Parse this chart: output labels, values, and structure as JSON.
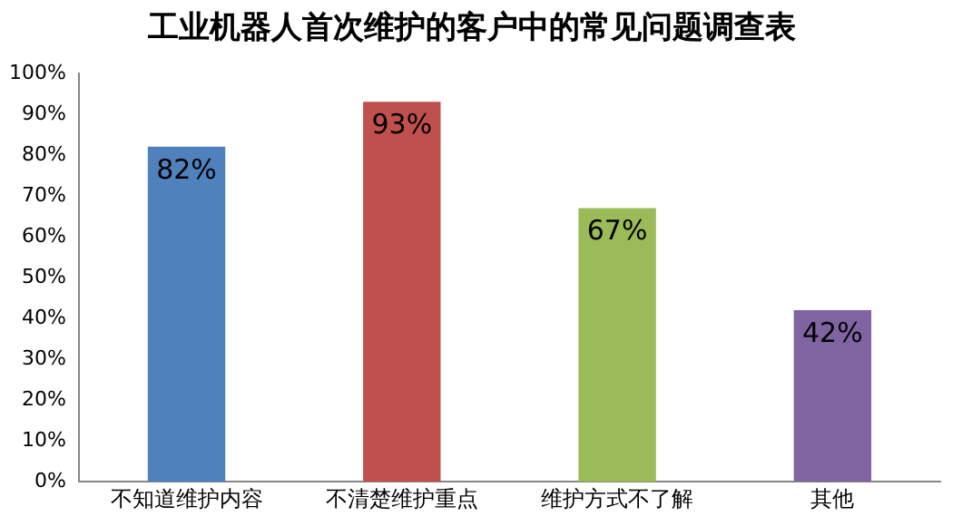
{
  "chart_data": {
    "type": "bar",
    "title": "工业机器人首次维护的客户中的常见问题调查表",
    "categories": [
      "不知道维护内容",
      "不清楚维护重点",
      "维护方式不了解",
      "其他"
    ],
    "values": [
      82,
      93,
      67,
      42
    ],
    "colors": [
      "#4f81bd",
      "#c0504d",
      "#9bbb59",
      "#8064a2"
    ],
    "value_labels": [
      "82%",
      "93%",
      "67%",
      "42%"
    ],
    "ylim": [
      0,
      100
    ],
    "yticks": [
      {
        "value": 0,
        "label": "0%"
      },
      {
        "value": 10,
        "label": "10%"
      },
      {
        "value": 20,
        "label": "20%"
      },
      {
        "value": 30,
        "label": "30%"
      },
      {
        "value": 40,
        "label": "40%"
      },
      {
        "value": 50,
        "label": "50%"
      },
      {
        "value": 60,
        "label": "60%"
      },
      {
        "value": 70,
        "label": "70%"
      },
      {
        "value": 80,
        "label": "80%"
      },
      {
        "value": 90,
        "label": "90%"
      },
      {
        "value": 100,
        "label": "100%"
      }
    ],
    "grid": false
  }
}
